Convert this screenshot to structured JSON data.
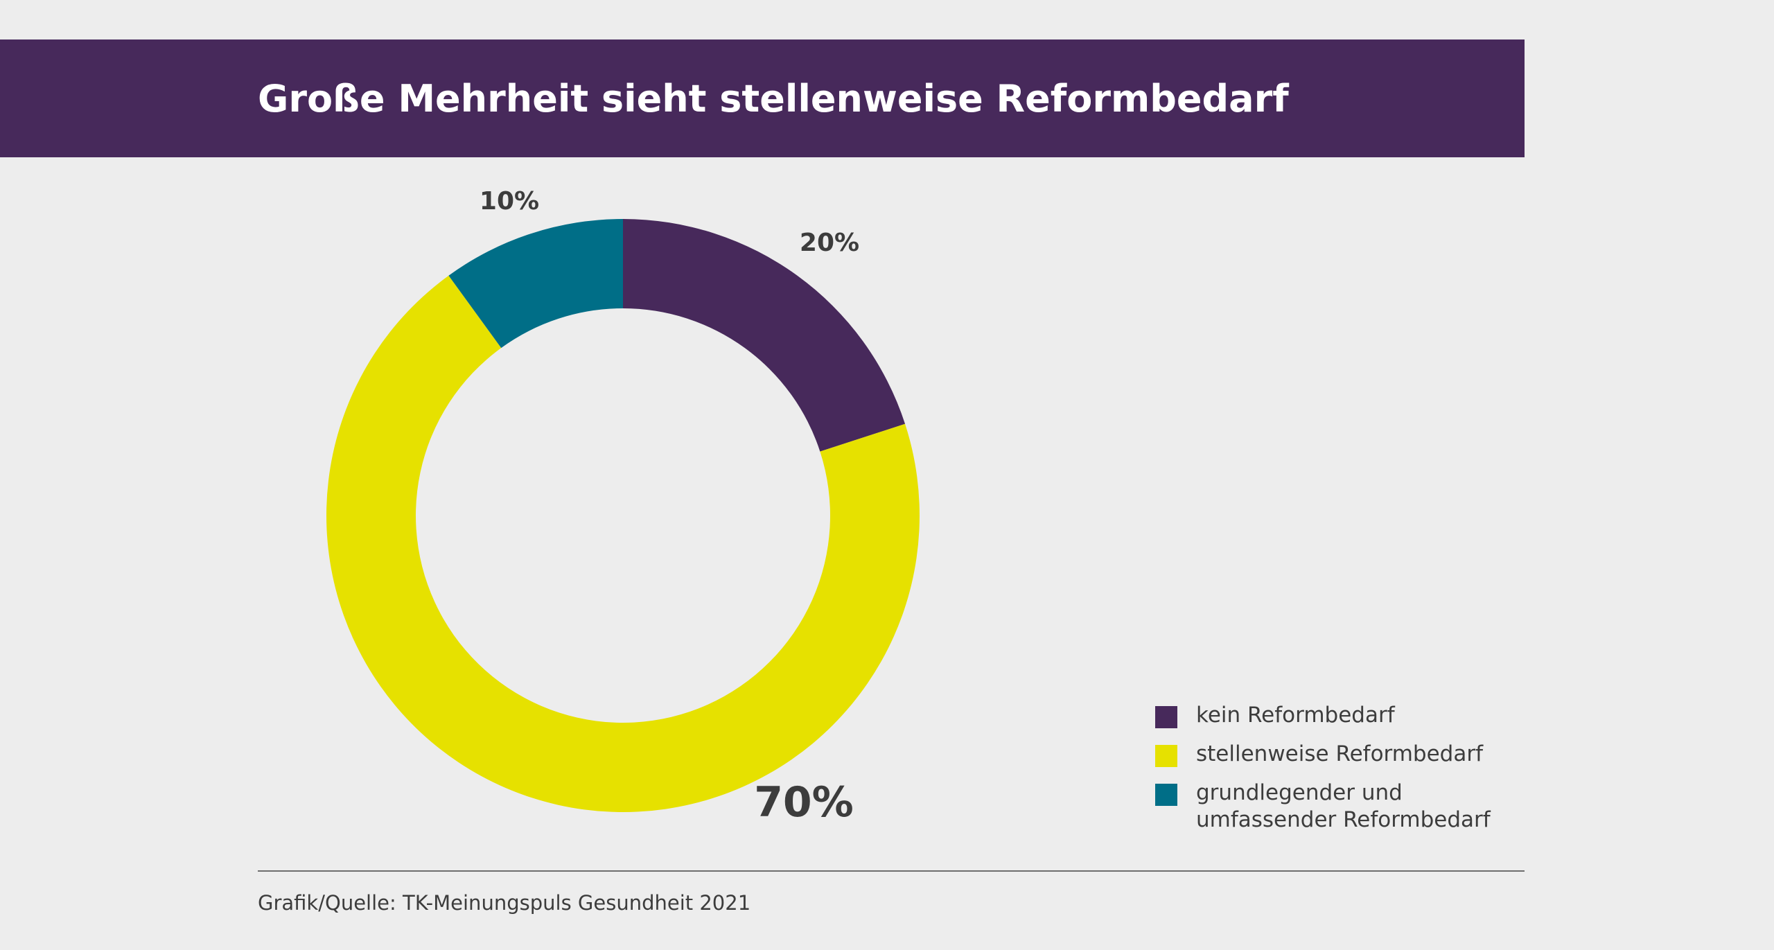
{
  "header": {
    "title": "Große Mehrheit sieht stellenweise Reformbedarf"
  },
  "chart_data": {
    "type": "pie",
    "variant": "donut",
    "title": "Große Mehrheit sieht stellenweise Reformbedarf",
    "categories": [
      "kein Reformbedarf",
      "stellenweise Reformbedarf",
      "grundlegender und umfassender Reformbedarf"
    ],
    "values": [
      20,
      70,
      10
    ],
    "data_labels": [
      "20%",
      "70%",
      "10%"
    ],
    "colors": [
      "#47295b",
      "#e6e100",
      "#006e87"
    ],
    "legend_position": "bottom-right"
  },
  "legend": {
    "items": [
      {
        "label_lines": [
          "kein Reformbedarf"
        ],
        "color": "#47295b"
      },
      {
        "label_lines": [
          "stellenweise Reformbedarf"
        ],
        "color": "#e6e100"
      },
      {
        "label_lines": [
          "grundlegender und",
          "umfassender Reformbedarf"
        ],
        "color": "#006e87"
      }
    ]
  },
  "footer": {
    "source": "Grafik/Quelle: TK-Meinungspuls Gesundheit 2021"
  }
}
